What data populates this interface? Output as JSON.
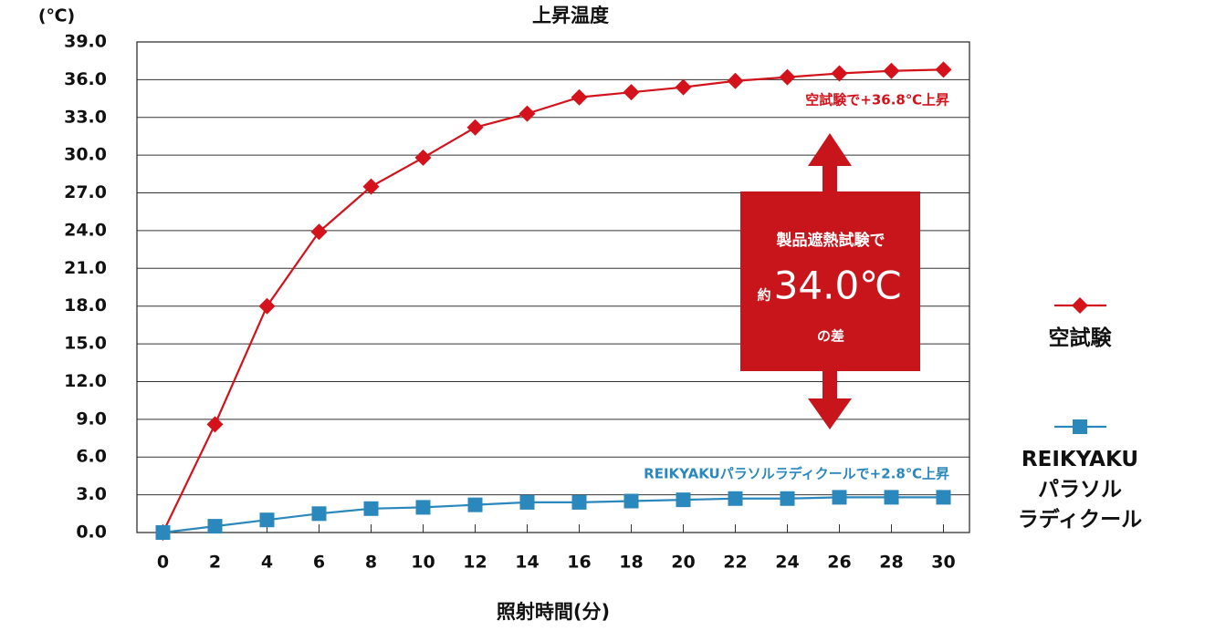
{
  "chart_data": {
    "type": "line",
    "title": "上昇温度",
    "y_unit_label": "(℃)",
    "x_label": "照射時間(分)",
    "x": [
      0,
      2,
      4,
      6,
      8,
      10,
      12,
      14,
      16,
      18,
      20,
      22,
      24,
      26,
      28,
      30
    ],
    "series": [
      {
        "name": "空試験",
        "color": "#d3121b",
        "marker": "diamond",
        "values": [
          0,
          8.6,
          18.0,
          23.9,
          27.5,
          29.8,
          32.2,
          33.3,
          34.6,
          35.0,
          35.4,
          35.9,
          36.2,
          36.5,
          36.7,
          36.8
        ]
      },
      {
        "name": "REIKYAKU\nパラソル\nラディクール",
        "color": "#2a88bd",
        "marker": "square",
        "values": [
          0,
          0.5,
          1.0,
          1.5,
          1.9,
          2.0,
          2.2,
          2.4,
          2.4,
          2.5,
          2.6,
          2.7,
          2.7,
          2.8,
          2.8,
          2.8
        ]
      }
    ],
    "xlim": [
      -1,
      31
    ],
    "xticks": [
      0,
      2,
      4,
      6,
      8,
      10,
      12,
      14,
      16,
      18,
      20,
      22,
      24,
      26,
      28,
      30
    ],
    "ylim": [
      0,
      39
    ],
    "yticks": [
      {
        "value": 0,
        "label": "0.0"
      },
      {
        "value": 3,
        "label": "3.0"
      },
      {
        "value": 6,
        "label": "6.0"
      },
      {
        "value": 9,
        "label": "9.0"
      },
      {
        "value": 12,
        "label": "12.0"
      },
      {
        "value": 15,
        "label": "15.0"
      },
      {
        "value": 18,
        "label": "18.0"
      },
      {
        "value": 21,
        "label": "21.0"
      },
      {
        "value": 24,
        "label": "24.0"
      },
      {
        "value": 27,
        "label": "27.0"
      },
      {
        "value": 30,
        "label": "30.0"
      },
      {
        "value": 33,
        "label": "33.0"
      },
      {
        "value": 36,
        "label": "36.0"
      },
      {
        "value": 39,
        "label": "39.0"
      }
    ],
    "grid": true,
    "legend_position": "right",
    "annotations": {
      "series_0_note": "空試験で+36.8℃上昇",
      "series_1_note": "REIKYAKUパラソルラディクールで+2.8℃上昇",
      "box_line_1": "製品遮熱試験で",
      "box_prefix": "約",
      "box_value": "34.0℃",
      "box_suffix": "の差"
    }
  }
}
